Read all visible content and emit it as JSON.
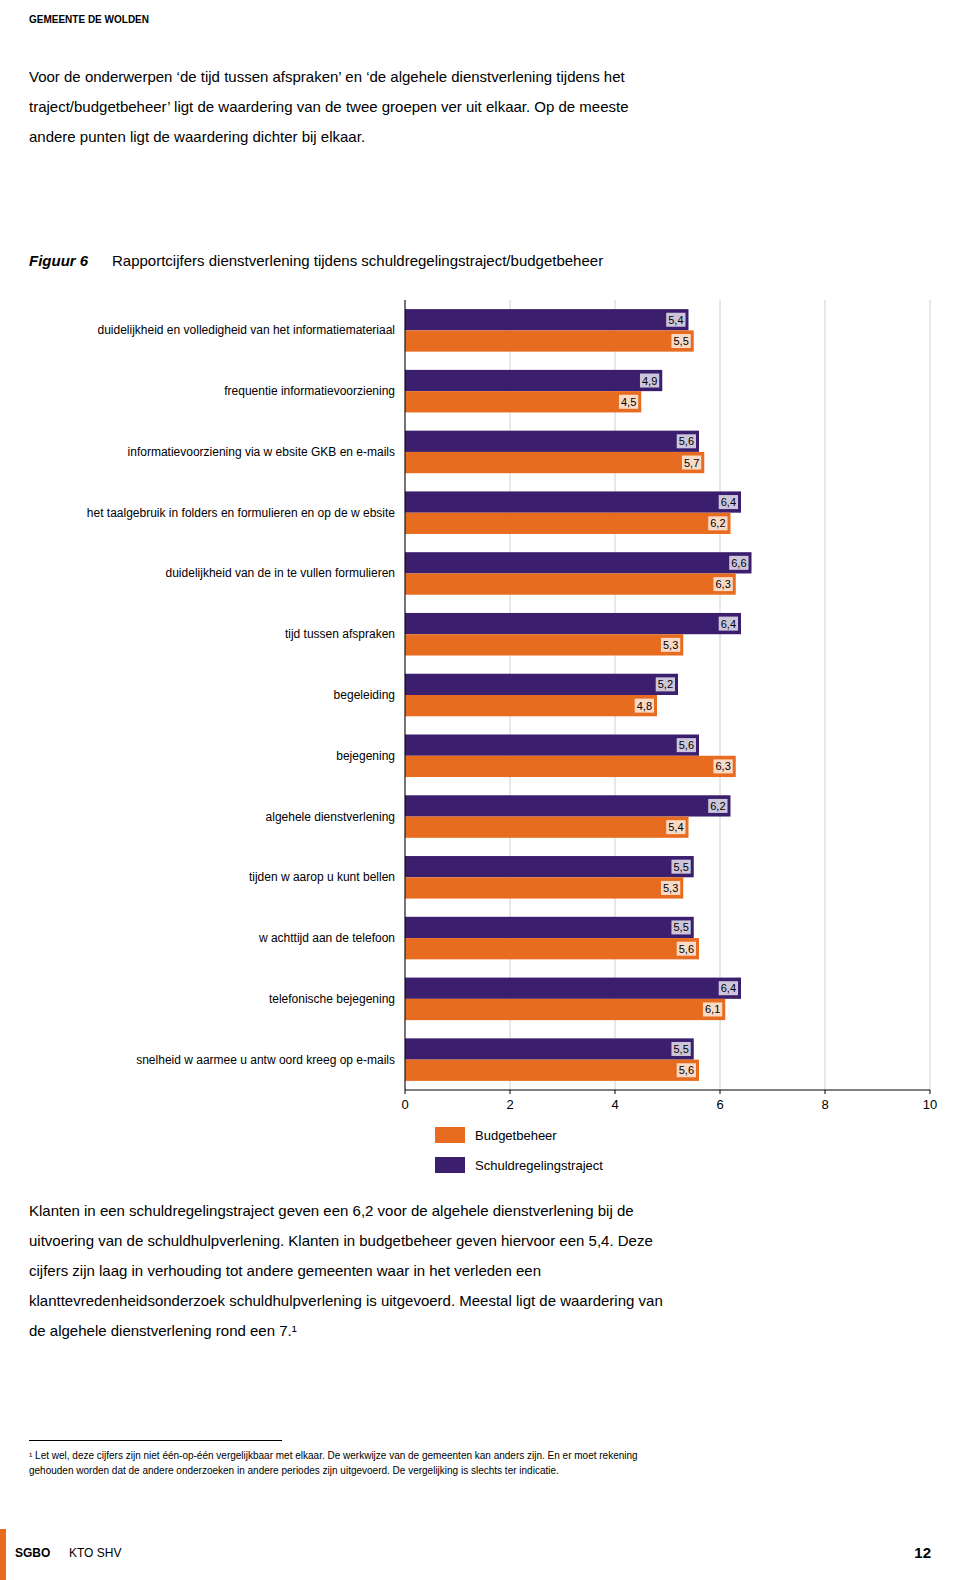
{
  "page": {
    "header": "GEMEENTE DE WOLDEN",
    "intro": [
      "Voor de onderwerpen ‘de tijd tussen afspraken’ en ‘de algehele dienstverlening tijdens het",
      "traject/budgetbeheer’ ligt de waardering van de twee groepen ver uit elkaar. Op de meeste",
      "andere punten ligt de waardering dichter bij elkaar."
    ],
    "footer": [
      "Klanten in een schuldregelingstraject geven een 6,2 voor de algehele dienstverlening bij de",
      "uitvoering van de schuldhulpverlening. Klanten in budgetbeheer geven hiervoor een 5,4. Deze",
      "cijfers zijn laag in verhouding tot andere gemeenten waar in het verleden een",
      "klanttevredenheidsonderzoek schuldhulpverlening is uitgevoerd. Meestal ligt de waardering van",
      "de algehele dienstverlening rond een 7.¹"
    ],
    "footnote": [
      "¹ Let wel, deze cijfers zijn niet één-op-één vergelijkbaar met elkaar. De werkwijze van de gemeenten kan anders zijn. En er moet rekening",
      "gehouden worden dat de andere onderzoeken in andere periodes zijn uitgevoerd. De vergelijking is slechts ter indicatie."
    ],
    "sgbo_label": "SGBO",
    "kto_label": "KTO SHV",
    "page_number": "12"
  },
  "chart_data": {
    "type": "bar",
    "orientation": "horizontal",
    "title_label": "Figuur 6",
    "title": "Rapportcijfers dienstverlening tijdens schuldregelingstraject/budgetbeheer",
    "categories": [
      "duidelijkheid en volledigheid van het informatiemateriaal",
      "frequentie informatievoorziening",
      "informatievoorziening via w ebsite GKB en e-mails",
      "het taalgebruik in folders en formulieren en op de w ebsite",
      "duidelijkheid van de in te vullen formulieren",
      "tijd tussen afspraken",
      "begeleiding",
      "bejegening",
      "algehele dienstverlening",
      "tijden w aarop u kunt bellen",
      "w achttijd aan de telefoon",
      "telefonische bejegening",
      "snelheid w aarmee u antw oord kreeg op e-mails"
    ],
    "series": [
      {
        "name": "Schuldregelingstraject",
        "color": "#3b1f6e",
        "values": [
          5.4,
          4.9,
          5.6,
          6.4,
          6.6,
          6.4,
          5.2,
          5.6,
          6.2,
          5.5,
          5.5,
          6.4,
          5.5
        ],
        "value_labels": [
          "5,4",
          "4,9",
          "5,6",
          "6,4",
          "6,6",
          "6,4",
          "5,2",
          "5,6",
          "6,2",
          "5,5",
          "5,5",
          "6,4",
          "5,5"
        ]
      },
      {
        "name": "Budgetbeheer",
        "color": "#e86c1f",
        "values": [
          5.5,
          4.5,
          5.7,
          6.2,
          6.3,
          5.3,
          4.8,
          6.3,
          5.4,
          5.3,
          5.6,
          6.1,
          5.6
        ],
        "value_labels": [
          "5,5",
          "4,5",
          "5,7",
          "6,2",
          "6,3",
          "5,3",
          "4,8",
          "6,3",
          "5,4",
          "5,3",
          "5,6",
          "6,1",
          "5,6"
        ]
      }
    ],
    "xlim": [
      0,
      10
    ],
    "xticks": [
      0,
      2,
      4,
      6,
      8,
      10
    ],
    "grid": true,
    "legend": "bottom",
    "data_labels": true
  }
}
